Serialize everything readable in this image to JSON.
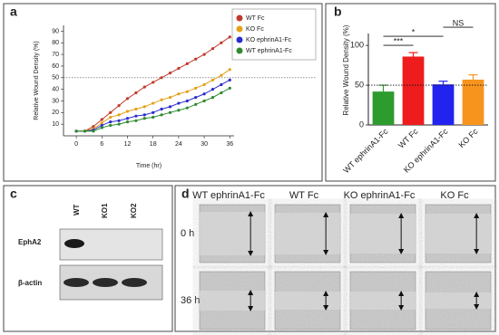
{
  "chart_data": [
    {
      "type": "line",
      "panel": "a",
      "ylabel": "Relative Wound Density (%)",
      "xlabel": "Time (hr)",
      "x": [
        0,
        2,
        4,
        6,
        8,
        10,
        12,
        14,
        16,
        18,
        20,
        22,
        24,
        26,
        28,
        30,
        32,
        34,
        36
      ],
      "series": [
        {
          "name": "WT Fc",
          "color": "#c0392b",
          "values": [
            4,
            4,
            8,
            14,
            20,
            26,
            32,
            37,
            42,
            46,
            50,
            54,
            58,
            62,
            66,
            70,
            75,
            80,
            85
          ]
        },
        {
          "name": "KO Fc",
          "color": "#e3a21a",
          "values": [
            4,
            4,
            6,
            11,
            16,
            18,
            21,
            23,
            25,
            28,
            31,
            33,
            36,
            38,
            41,
            44,
            48,
            52,
            57
          ]
        },
        {
          "name": "KO ephrinA1-Fc",
          "color": "#2b2bd0",
          "values": [
            4,
            4,
            5,
            9,
            12,
            13,
            15,
            17,
            18,
            20,
            23,
            25,
            28,
            30,
            33,
            36,
            40,
            44,
            48
          ]
        },
        {
          "name": "WT ephrinA1-Fc",
          "color": "#2e8b2e",
          "values": [
            4,
            4,
            4,
            7,
            9,
            10,
            12,
            13,
            15,
            16,
            18,
            20,
            22,
            24,
            27,
            30,
            33,
            37,
            41
          ]
        }
      ],
      "xlim": [
        -3,
        37
      ],
      "ylim": [
        0,
        95
      ],
      "xticks": [
        0,
        6,
        12,
        18,
        24,
        30,
        36
      ],
      "yticks": [
        10,
        20,
        30,
        40,
        50,
        60,
        70,
        80,
        90
      ],
      "reference_line": 50,
      "legend": "upper-right"
    },
    {
      "type": "bar",
      "panel": "b",
      "ylabel": "Relative Wound Density (%)",
      "categories": [
        "WT ephrinA1-Fc",
        "WT Fc",
        "KO ephrinA1-Fc",
        "KO Fc"
      ],
      "values": [
        42,
        86,
        51,
        57
      ],
      "errors": [
        8,
        5,
        4,
        6
      ],
      "colors": [
        "#2e9b2e",
        "#ee1c1c",
        "#2323f0",
        "#f7941d"
      ],
      "ylim": [
        0,
        115
      ],
      "yticks": [
        0,
        50,
        100
      ],
      "reference_line": 50,
      "annotations": [
        {
          "label": "***",
          "from": 0,
          "to": 1
        },
        {
          "label": "*",
          "from": 0,
          "to": 2
        },
        {
          "label": "NS",
          "from": 2,
          "to": 3
        }
      ]
    }
  ],
  "panel_c": {
    "label": "c",
    "lanes": [
      "WT",
      "KO1",
      "KO2"
    ],
    "rows": [
      "EphA2",
      "β-actin"
    ]
  },
  "panel_d": {
    "label": "d",
    "columns": [
      "WT ephrinA1-Fc",
      "WT Fc",
      "KO ephrinA1-Fc",
      "KO Fc"
    ],
    "rows": [
      "0 h",
      "36 h"
    ]
  }
}
